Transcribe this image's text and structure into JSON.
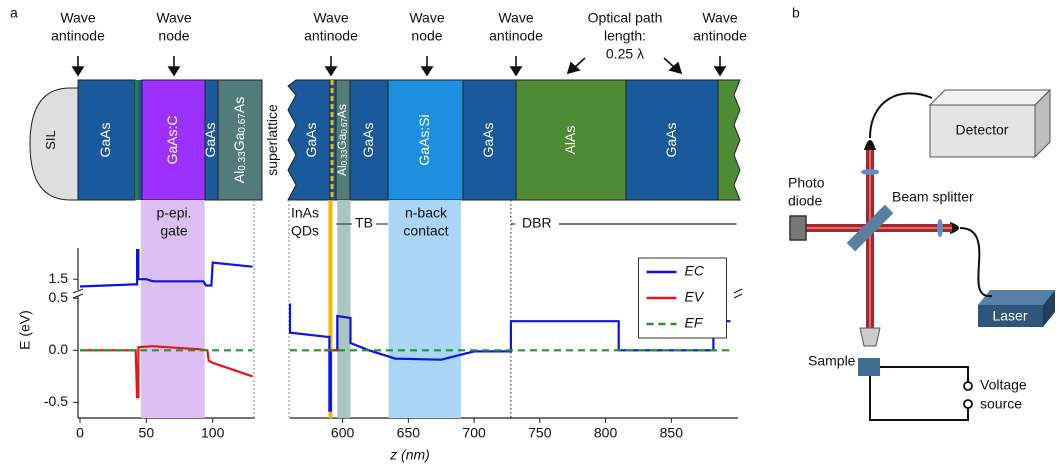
{
  "panel_labels": [
    "a",
    "b"
  ],
  "layer_stack": {
    "annotations": [
      [
        "Wave",
        "antinode"
      ],
      [
        "Wave",
        "node"
      ],
      [
        "Wave",
        "antinode"
      ],
      [
        "Wave",
        "node"
      ],
      [
        "Wave",
        "antinode"
      ],
      [
        "Optical path",
        "length:",
        "0.25 λ"
      ],
      [
        "Wave",
        "antinode"
      ]
    ],
    "layers": [
      [
        "SIL"
      ],
      [
        "GaAs"
      ],
      [
        "GaAs:C"
      ],
      [
        "GaAs"
      ],
      [
        "Al",
        "0.33",
        "Ga",
        "0.67",
        "As"
      ],
      [
        "superlattice"
      ],
      [
        "GaAs"
      ],
      [
        "Al",
        "0.33",
        "Ga",
        "0.67",
        "As"
      ],
      [
        "GaAs"
      ],
      [
        "GaAs:Si"
      ],
      [
        "GaAs"
      ],
      [
        "AlAs"
      ],
      [
        "GaAs"
      ]
    ]
  },
  "chart_data": [
    {
      "type": "line",
      "xlabel": "z (nm)",
      "ylabel": "E (eV)",
      "xlim": [
        0,
        130
      ],
      "xticks": [
        0,
        50,
        100
      ],
      "ylim": [
        -0.65,
        1.8
      ],
      "y_break": [
        0.55,
        1.4
      ],
      "yticks": [
        -0.5,
        {
          "value": 0,
          "label": "0.0"
        },
        0.5,
        1.5
      ],
      "regions": [
        {
          "label": [
            "p-epi.",
            "gate"
          ],
          "x0": 46,
          "x1": 94,
          "color": "#dcc0f3"
        }
      ],
      "series": [
        {
          "name": "EC",
          "color": "#0a14e6",
          "x": [
            0,
            40,
            43,
            43,
            44,
            44,
            50,
            55,
            93,
            95,
            99,
            100,
            130
          ],
          "values": [
            1.43,
            1.45,
            1.45,
            1.78,
            1.78,
            1.5,
            1.5,
            1.48,
            1.48,
            1.44,
            1.44,
            1.66,
            1.62
          ]
        },
        {
          "name": "EV",
          "color": "#e8141a",
          "x": [
            0,
            42,
            43,
            44,
            44,
            55,
            90,
            96,
            97,
            100,
            130
          ],
          "values": [
            0,
            0,
            -0.45,
            -0.45,
            0.03,
            0.04,
            0.01,
            0,
            -0.1,
            -0.12,
            -0.25
          ]
        },
        {
          "name": "EF",
          "color": "#1f9a2a",
          "line_style": "dashed",
          "x": [
            0,
            130
          ],
          "values": [
            0,
            0
          ]
        }
      ]
    },
    {
      "type": "line",
      "xlim": [
        560,
        895
      ],
      "xticks": [
        600,
        650,
        700,
        750,
        800,
        850
      ],
      "ylim": [
        -0.65,
        1.8
      ],
      "y_break": [
        0.55,
        1.4
      ],
      "legend": "upper right",
      "regions": [
        {
          "label": [
            "InAs",
            "QDs"
          ],
          "x0": 590,
          "x1": 592,
          "color": "#f5b800"
        },
        {
          "label": [
            "TB"
          ],
          "x0": 596,
          "x1": 606,
          "color": "#a9c6c1"
        },
        {
          "label": [
            "n-back",
            "contact"
          ],
          "x0": 635,
          "x1": 690,
          "color": "#a9d5f6"
        },
        {
          "label": [
            "DBR"
          ],
          "x0": 728,
          "x1": 895,
          "style": "bracket"
        }
      ],
      "series": [
        {
          "name": "EC",
          "color": "#0a14e6",
          "x": [
            560,
            560,
            588,
            590,
            590,
            591,
            591,
            596,
            596,
            606,
            606,
            620,
            640,
            675,
            700,
            728,
            728,
            810,
            810,
            882,
            882,
            895
          ],
          "values": [
            0.45,
            0.17,
            0.13,
            0.13,
            -0.58,
            -0.58,
            0,
            0,
            0.33,
            0.31,
            0.07,
            0,
            -0.08,
            -0.09,
            -0.01,
            -0.01,
            0.28,
            0.28,
            0,
            0,
            0.28,
            0.28
          ]
        },
        {
          "name": "EV",
          "color": "#e8141a",
          "x": [
            586,
            598
          ],
          "values": [
            0,
            0
          ]
        },
        {
          "name": "EF",
          "color": "#1f9a2a",
          "line_style": "dashed",
          "x": [
            560,
            895
          ],
          "values": [
            0,
            0
          ]
        }
      ]
    }
  ],
  "setup": {
    "detector": "Detector",
    "photo_diode": [
      "Photo",
      "diode"
    ],
    "beam_splitter": "Beam splitter",
    "laser": "Laser",
    "sample": "Sample",
    "voltage_source": [
      "Voltage",
      "source"
    ]
  }
}
